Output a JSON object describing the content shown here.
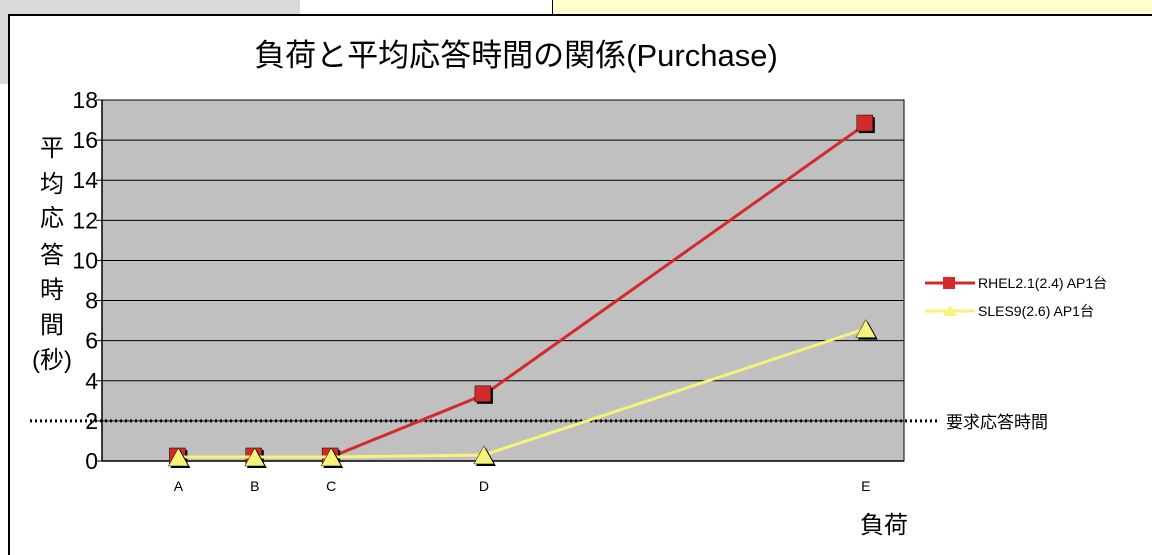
{
  "chart_data": {
    "type": "line",
    "title": "負荷と平均応答時間の関係(Purchase)",
    "xlabel": "負荷",
    "ylabel_chars": [
      "平",
      "均",
      "応",
      "答",
      "時",
      "間",
      "(秒)"
    ],
    "categories": [
      "A",
      "B",
      "C",
      "D",
      "E"
    ],
    "x_positions": [
      0.5,
      1.5,
      2.5,
      4.5,
      9.5
    ],
    "x_range": [
      -0.5,
      10.0
    ],
    "ylim": [
      0,
      18
    ],
    "yticks": [
      0,
      2,
      4,
      6,
      8,
      10,
      12,
      14,
      16,
      18
    ],
    "grid": true,
    "legend_position": "right",
    "series": [
      {
        "name": "RHEL2.1(2.4) AP1台",
        "color": "#d42a2a",
        "marker": "square",
        "values": [
          0.2,
          0.2,
          0.2,
          3.3,
          16.8
        ]
      },
      {
        "name": "SLES9(2.6) AP1台",
        "color": "#f7f27a",
        "marker": "triangle",
        "values": [
          0.2,
          0.2,
          0.2,
          0.3,
          6.6
        ]
      }
    ],
    "reference_line": {
      "value": 2,
      "label": "要求応答時間"
    }
  },
  "colors": {
    "plot_bg": "#c0c0c0",
    "grid": "#000000",
    "background_panel": "#d9d9d9",
    "highlight_panel": "#ffffcc"
  }
}
